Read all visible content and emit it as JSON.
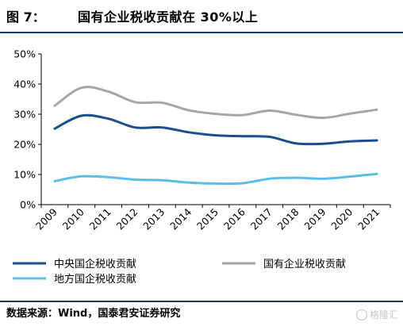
{
  "header": {
    "figure_label": "图 7：",
    "title": "国有企业税收贡献在 30%以上"
  },
  "chart_data": {
    "type": "line",
    "x": [
      "2009",
      "2010",
      "2011",
      "2012",
      "2013",
      "2014",
      "2015",
      "2016",
      "2017",
      "2018",
      "2019",
      "2020",
      "2021"
    ],
    "ylim": [
      0,
      50
    ],
    "yticks": [
      "0%",
      "10%",
      "20%",
      "30%",
      "40%",
      "50%"
    ],
    "ytick_values": [
      0,
      10,
      20,
      30,
      40,
      50
    ],
    "grid": false,
    "legend_position": "bottom",
    "series": [
      {
        "name": "中央国企税收贡献",
        "color": "#1a4e8c",
        "values": [
          25.2,
          29.5,
          28.5,
          25.6,
          25.6,
          24.0,
          23.0,
          22.7,
          22.5,
          20.3,
          20.2,
          21.0,
          21.3
        ]
      },
      {
        "name": "国有企业税收贡献",
        "color": "#a6a6a6",
        "values": [
          32.8,
          38.8,
          37.5,
          34.0,
          33.8,
          31.3,
          30.1,
          29.7,
          31.2,
          29.8,
          28.8,
          30.2,
          31.5
        ]
      },
      {
        "name": "地方国企税收贡献",
        "color": "#5bbde8",
        "values": [
          7.8,
          9.4,
          9.1,
          8.3,
          8.1,
          7.3,
          7.0,
          7.1,
          8.6,
          8.9,
          8.6,
          9.3,
          10.2
        ]
      }
    ]
  },
  "footer": {
    "source": "数据来源：Wind，国泰君安证券研究"
  },
  "watermark": {
    "text": "格隆汇"
  }
}
